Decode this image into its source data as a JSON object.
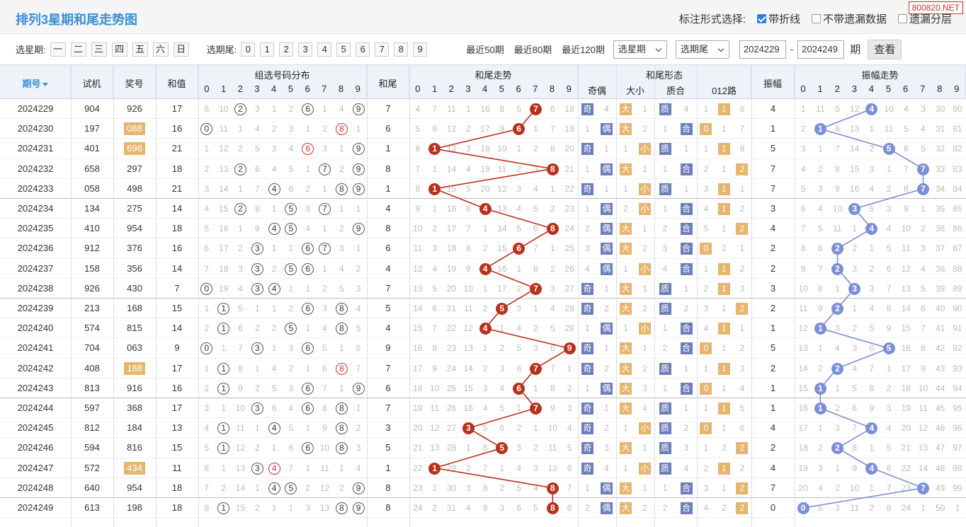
{
  "title": "排列3星期和尾走势图",
  "watermark": "800820.NET",
  "mark_options": {
    "label": "标注形式选择:",
    "opt1": "带折线",
    "opt2": "不带遗漏数据",
    "opt3": "遗漏分层",
    "opt1_checked": true
  },
  "filter": {
    "week_label": "选星期:",
    "weekdays": [
      "一",
      "二",
      "三",
      "四",
      "五",
      "六",
      "日"
    ],
    "tail_label": "选期尾:",
    "tails": [
      "0",
      "1",
      "2",
      "3",
      "4",
      "5",
      "6",
      "7",
      "8",
      "9"
    ],
    "recent": [
      "最近50期",
      "最近80期",
      "最近120期"
    ],
    "select_week": "选星期",
    "select_tail": "选期尾",
    "from": "2024229",
    "dash": "-",
    "to": "2024249",
    "period": "期",
    "view": "查看"
  },
  "headers": {
    "issue": "期号",
    "trial": "试机",
    "prize": "奖号",
    "sum": "和值",
    "dist": "组选号码分布",
    "tail": "和尾",
    "tail_trend": "和尾走势",
    "form": "和尾形态",
    "odd_even": "奇偶",
    "big_small": "大小",
    "prime": "质合",
    "road": "012路",
    "amp": "振幅",
    "amp_trend": "振幅走势",
    "digits": [
      "0",
      "1",
      "2",
      "3",
      "4",
      "5",
      "6",
      "7",
      "8",
      "9"
    ]
  },
  "rows": [
    {
      "issue": "2024229",
      "trial": "904",
      "prize": "926",
      "sum": "17",
      "prize_hl": false,
      "dist": [
        "8",
        "10",
        "2",
        "3",
        "1",
        "2",
        "6",
        "1",
        "4",
        "9"
      ],
      "tail": "7",
      "tt": [
        "4",
        "7",
        "11",
        "1",
        "16",
        "8",
        "5",
        "7",
        "6",
        "18"
      ],
      "oe": [
        "奇",
        "4"
      ],
      "bs": [
        "大",
        "1"
      ],
      "pc": [
        "质",
        "4"
      ],
      "road": [
        "1",
        "1",
        "6"
      ],
      "amp": "4",
      "at": [
        "1",
        "11",
        "5",
        "12",
        "4",
        "10",
        "4",
        "3",
        "30",
        "80"
      ]
    },
    {
      "issue": "2024230",
      "trial": "197",
      "prize": "088",
      "sum": "16",
      "prize_hl": true,
      "dist": [
        "0",
        "11",
        "1",
        "4",
        "2",
        "3",
        "1",
        "2",
        "8",
        "1"
      ],
      "tail": "6",
      "tt": [
        "5",
        "8",
        "12",
        "2",
        "17",
        "9",
        "6",
        "1",
        "7",
        "19"
      ],
      "oe": [
        "1",
        "偶"
      ],
      "bs": [
        "大",
        "2"
      ],
      "pc": [
        "1",
        "合"
      ],
      "road": [
        "0",
        "1",
        "7"
      ],
      "amp": "1",
      "at": [
        "2",
        "1",
        "6",
        "13",
        "1",
        "11",
        "5",
        "4",
        "31",
        "81"
      ]
    },
    {
      "issue": "2024231",
      "trial": "401",
      "prize": "696",
      "sum": "21",
      "prize_hl": true,
      "dist": [
        "1",
        "12",
        "2",
        "5",
        "3",
        "4",
        "6",
        "3",
        "1",
        "9"
      ],
      "tail": "1",
      "tt": [
        "6",
        "1",
        "13",
        "3",
        "18",
        "10",
        "1",
        "2",
        "8",
        "20"
      ],
      "oe": [
        "奇",
        "1"
      ],
      "bs": [
        "1",
        "小"
      ],
      "pc": [
        "质",
        "1"
      ],
      "road": [
        "1",
        "1",
        "8"
      ],
      "amp": "5",
      "at": [
        "3",
        "1",
        "7",
        "14",
        "2",
        "5",
        "6",
        "5",
        "32",
        "82"
      ]
    },
    {
      "issue": "2024232",
      "trial": "658",
      "prize": "297",
      "sum": "18",
      "prize_hl": false,
      "dist": [
        "2",
        "13",
        "2",
        "6",
        "4",
        "5",
        "1",
        "7",
        "2",
        "9"
      ],
      "tail": "8",
      "tt": [
        "7",
        "1",
        "14",
        "4",
        "19",
        "11",
        "2",
        "3",
        "8",
        "21"
      ],
      "oe": [
        "1",
        "偶"
      ],
      "bs": [
        "大",
        "1"
      ],
      "pc": [
        "1",
        "合"
      ],
      "road": [
        "2",
        "1",
        "2"
      ],
      "amp": "7",
      "at": [
        "4",
        "2",
        "8",
        "15",
        "3",
        "1",
        "7",
        "7",
        "33",
        "83"
      ]
    },
    {
      "issue": "2024233",
      "trial": "058",
      "prize": "498",
      "sum": "21",
      "prize_hl": false,
      "dist": [
        "3",
        "14",
        "1",
        "7",
        "4",
        "6",
        "2",
        "1",
        "8",
        "9"
      ],
      "tail": "1",
      "tt": [
        "8",
        "1",
        "15",
        "5",
        "20",
        "12",
        "3",
        "4",
        "1",
        "22"
      ],
      "oe": [
        "奇",
        "1"
      ],
      "bs": [
        "1",
        "小"
      ],
      "pc": [
        "质",
        "1"
      ],
      "road": [
        "3",
        "1",
        "1"
      ],
      "amp": "7",
      "at": [
        "5",
        "3",
        "9",
        "16",
        "4",
        "2",
        "8",
        "7",
        "34",
        "84"
      ]
    },
    {
      "issue": "2024234",
      "trial": "134",
      "prize": "275",
      "sum": "14",
      "prize_hl": false,
      "dist": [
        "4",
        "15",
        "2",
        "8",
        "1",
        "5",
        "3",
        "7",
        "1",
        "1"
      ],
      "tail": "4",
      "tt": [
        "9",
        "1",
        "16",
        "6",
        "4",
        "13",
        "4",
        "5",
        "2",
        "23"
      ],
      "oe": [
        "1",
        "偶"
      ],
      "bs": [
        "2",
        "小"
      ],
      "pc": [
        "1",
        "合"
      ],
      "road": [
        "4",
        "1",
        "2"
      ],
      "amp": "3",
      "at": [
        "6",
        "4",
        "10",
        "3",
        "5",
        "3",
        "9",
        "1",
        "35",
        "85"
      ]
    },
    {
      "issue": "2024235",
      "trial": "410",
      "prize": "954",
      "sum": "18",
      "prize_hl": false,
      "dist": [
        "5",
        "16",
        "1",
        "9",
        "4",
        "5",
        "4",
        "1",
        "2",
        "9"
      ],
      "tail": "8",
      "tt": [
        "10",
        "2",
        "17",
        "7",
        "1",
        "14",
        "5",
        "6",
        "8",
        "24"
      ],
      "oe": [
        "2",
        "偶"
      ],
      "bs": [
        "大",
        "1"
      ],
      "pc": [
        "2",
        "合"
      ],
      "road": [
        "5",
        "1",
        "2"
      ],
      "amp": "4",
      "at": [
        "7",
        "5",
        "11",
        "1",
        "4",
        "4",
        "10",
        "2",
        "36",
        "86"
      ]
    },
    {
      "issue": "2024236",
      "trial": "912",
      "prize": "376",
      "sum": "16",
      "prize_hl": false,
      "dist": [
        "6",
        "17",
        "2",
        "3",
        "1",
        "1",
        "6",
        "7",
        "3",
        "1"
      ],
      "tail": "6",
      "tt": [
        "11",
        "3",
        "18",
        "8",
        "2",
        "15",
        "6",
        "7",
        "1",
        "25"
      ],
      "oe": [
        "3",
        "偶"
      ],
      "bs": [
        "大",
        "2"
      ],
      "pc": [
        "3",
        "合"
      ],
      "road": [
        "0",
        "2",
        "1"
      ],
      "amp": "2",
      "at": [
        "8",
        "6",
        "2",
        "2",
        "1",
        "5",
        "11",
        "3",
        "37",
        "87"
      ]
    },
    {
      "issue": "2024237",
      "trial": "158",
      "prize": "356",
      "sum": "14",
      "prize_hl": false,
      "dist": [
        "7",
        "18",
        "3",
        "3",
        "2",
        "5",
        "6",
        "1",
        "4",
        "2"
      ],
      "tail": "4",
      "tt": [
        "12",
        "4",
        "19",
        "9",
        "4",
        "16",
        "1",
        "8",
        "2",
        "26"
      ],
      "oe": [
        "4",
        "偶"
      ],
      "bs": [
        "1",
        "小"
      ],
      "pc": [
        "4",
        "合"
      ],
      "road": [
        "1",
        "1",
        "2"
      ],
      "amp": "2",
      "at": [
        "9",
        "7",
        "2",
        "3",
        "2",
        "6",
        "12",
        "4",
        "38",
        "88"
      ]
    },
    {
      "issue": "2024238",
      "trial": "926",
      "prize": "430",
      "sum": "7",
      "prize_hl": false,
      "dist": [
        "0",
        "19",
        "4",
        "3",
        "4",
        "1",
        "1",
        "2",
        "5",
        "3"
      ],
      "tail": "7",
      "tt": [
        "13",
        "5",
        "20",
        "10",
        "1",
        "17",
        "2",
        "7",
        "3",
        "27"
      ],
      "oe": [
        "奇",
        "1"
      ],
      "bs": [
        "大",
        "1"
      ],
      "pc": [
        "质",
        "1"
      ],
      "road": [
        "2",
        "1",
        "3"
      ],
      "amp": "3",
      "at": [
        "10",
        "8",
        "1",
        "3",
        "3",
        "7",
        "13",
        "5",
        "39",
        "89"
      ]
    },
    {
      "issue": "2024239",
      "trial": "213",
      "prize": "168",
      "sum": "15",
      "prize_hl": false,
      "dist": [
        "1",
        "1",
        "5",
        "1",
        "1",
        "2",
        "6",
        "3",
        "8",
        "4"
      ],
      "tail": "5",
      "tt": [
        "14",
        "6",
        "21",
        "11",
        "2",
        "5",
        "3",
        "1",
        "4",
        "28"
      ],
      "oe": [
        "奇",
        "2"
      ],
      "bs": [
        "大",
        "2"
      ],
      "pc": [
        "质",
        "2"
      ],
      "road": [
        "3",
        "1",
        "2"
      ],
      "amp": "2",
      "at": [
        "11",
        "9",
        "2",
        "1",
        "4",
        "8",
        "14",
        "6",
        "40",
        "90"
      ]
    },
    {
      "issue": "2024240",
      "trial": "574",
      "prize": "815",
      "sum": "14",
      "prize_hl": false,
      "dist": [
        "2",
        "1",
        "6",
        "2",
        "2",
        "5",
        "1",
        "4",
        "8",
        "5"
      ],
      "tail": "4",
      "tt": [
        "15",
        "7",
        "22",
        "12",
        "4",
        "1",
        "4",
        "2",
        "5",
        "29"
      ],
      "oe": [
        "1",
        "偶"
      ],
      "bs": [
        "1",
        "小"
      ],
      "pc": [
        "1",
        "合"
      ],
      "road": [
        "4",
        "1",
        "1"
      ],
      "amp": "1",
      "at": [
        "12",
        "1",
        "3",
        "2",
        "5",
        "9",
        "15",
        "7",
        "41",
        "91"
      ]
    },
    {
      "issue": "2024241",
      "trial": "704",
      "prize": "063",
      "sum": "9",
      "prize_hl": false,
      "dist": [
        "0",
        "1",
        "7",
        "3",
        "1",
        "3",
        "6",
        "5",
        "1",
        "6"
      ],
      "tail": "9",
      "tt": [
        "16",
        "8",
        "23",
        "13",
        "1",
        "2",
        "5",
        "3",
        "6",
        "9"
      ],
      "oe": [
        "奇",
        "1"
      ],
      "bs": [
        "大",
        "1"
      ],
      "pc": [
        "2",
        "合"
      ],
      "road": [
        "0",
        "1",
        "2"
      ],
      "amp": "5",
      "at": [
        "13",
        "1",
        "4",
        "3",
        "6",
        "5",
        "16",
        "8",
        "42",
        "92"
      ]
    },
    {
      "issue": "2024242",
      "trial": "408",
      "prize": "188",
      "sum": "17",
      "prize_hl": true,
      "dist": [
        "1",
        "1",
        "8",
        "1",
        "4",
        "2",
        "1",
        "6",
        "8",
        "7"
      ],
      "tail": "7",
      "tt": [
        "17",
        "9",
        "24",
        "14",
        "2",
        "3",
        "6",
        "7",
        "7",
        "1"
      ],
      "oe": [
        "奇",
        "2"
      ],
      "bs": [
        "大",
        "2"
      ],
      "pc": [
        "质",
        "1"
      ],
      "road": [
        "1",
        "1",
        "3"
      ],
      "amp": "2",
      "at": [
        "14",
        "2",
        "2",
        "4",
        "7",
        "1",
        "17",
        "9",
        "43",
        "93"
      ]
    },
    {
      "issue": "2024243",
      "trial": "813",
      "prize": "916",
      "sum": "16",
      "prize_hl": false,
      "dist": [
        "2",
        "1",
        "9",
        "2",
        "5",
        "3",
        "6",
        "7",
        "1",
        "9"
      ],
      "tail": "6",
      "tt": [
        "18",
        "10",
        "25",
        "15",
        "3",
        "4",
        "6",
        "1",
        "8",
        "2"
      ],
      "oe": [
        "1",
        "偶"
      ],
      "bs": [
        "大",
        "3"
      ],
      "pc": [
        "1",
        "合"
      ],
      "road": [
        "0",
        "1",
        "4"
      ],
      "amp": "1",
      "at": [
        "15",
        "1",
        "1",
        "5",
        "8",
        "2",
        "18",
        "10",
        "44",
        "94"
      ]
    },
    {
      "issue": "2024244",
      "trial": "597",
      "prize": "368",
      "sum": "17",
      "prize_hl": false,
      "dist": [
        "3",
        "1",
        "10",
        "3",
        "6",
        "4",
        "6",
        "8",
        "8",
        "1"
      ],
      "tail": "7",
      "tt": [
        "19",
        "11",
        "26",
        "16",
        "4",
        "5",
        "1",
        "7",
        "9",
        "3"
      ],
      "oe": [
        "奇",
        "1"
      ],
      "bs": [
        "大",
        "4"
      ],
      "pc": [
        "质",
        "1"
      ],
      "road": [
        "1",
        "1",
        "5"
      ],
      "amp": "1",
      "at": [
        "16",
        "1",
        "2",
        "6",
        "9",
        "3",
        "19",
        "11",
        "45",
        "95"
      ]
    },
    {
      "issue": "2024245",
      "trial": "812",
      "prize": "184",
      "sum": "13",
      "prize_hl": false,
      "dist": [
        "4",
        "1",
        "11",
        "1",
        "4",
        "5",
        "1",
        "9",
        "8",
        "2"
      ],
      "tail": "3",
      "tt": [
        "20",
        "12",
        "27",
        "3",
        "5",
        "6",
        "2",
        "1",
        "10",
        "4"
      ],
      "oe": [
        "奇",
        "2"
      ],
      "bs": [
        "1",
        "小"
      ],
      "pc": [
        "质",
        "2"
      ],
      "road": [
        "0",
        "1",
        "6"
      ],
      "amp": "4",
      "at": [
        "17",
        "1",
        "3",
        "7",
        "4",
        "4",
        "20",
        "12",
        "46",
        "96"
      ]
    },
    {
      "issue": "2024246",
      "trial": "594",
      "prize": "816",
      "sum": "15",
      "prize_hl": false,
      "dist": [
        "5",
        "1",
        "12",
        "2",
        "1",
        "6",
        "6",
        "10",
        "8",
        "3"
      ],
      "tail": "5",
      "tt": [
        "21",
        "13",
        "28",
        "1",
        "6",
        "5",
        "3",
        "2",
        "11",
        "5"
      ],
      "oe": [
        "奇",
        "3"
      ],
      "bs": [
        "大",
        "1"
      ],
      "pc": [
        "质",
        "3"
      ],
      "road": [
        "1",
        "2",
        "2"
      ],
      "amp": "2",
      "at": [
        "18",
        "2",
        "2",
        "8",
        "1",
        "5",
        "21",
        "13",
        "47",
        "97"
      ]
    },
    {
      "issue": "2024247",
      "trial": "572",
      "prize": "434",
      "sum": "11",
      "prize_hl": true,
      "dist": [
        "6",
        "1",
        "13",
        "3",
        "4",
        "7",
        "1",
        "11",
        "1",
        "4"
      ],
      "tail": "1",
      "tt": [
        "22",
        "1",
        "29",
        "2",
        "7",
        "1",
        "4",
        "3",
        "12",
        "6"
      ],
      "oe": [
        "奇",
        "4"
      ],
      "bs": [
        "1",
        "小"
      ],
      "pc": [
        "质",
        "4"
      ],
      "road": [
        "2",
        "1",
        "2"
      ],
      "amp": "4",
      "at": [
        "19",
        "3",
        "1",
        "9",
        "4",
        "6",
        "22",
        "14",
        "48",
        "98"
      ]
    },
    {
      "issue": "2024248",
      "trial": "640",
      "prize": "954",
      "sum": "18",
      "prize_hl": false,
      "dist": [
        "7",
        "2",
        "14",
        "1",
        "4",
        "5",
        "2",
        "12",
        "2",
        "9"
      ],
      "tail": "8",
      "tt": [
        "23",
        "1",
        "30",
        "3",
        "8",
        "2",
        "5",
        "4",
        "8",
        "7"
      ],
      "oe": [
        "1",
        "偶"
      ],
      "bs": [
        "大",
        "1"
      ],
      "pc": [
        "1",
        "合"
      ],
      "road": [
        "3",
        "1",
        "2"
      ],
      "amp": "7",
      "at": [
        "20",
        "4",
        "2",
        "10",
        "1",
        "7",
        "23",
        "7",
        "49",
        "99"
      ]
    },
    {
      "issue": "2024249",
      "trial": "613",
      "prize": "198",
      "sum": "18",
      "prize_hl": false,
      "dist": [
        "8",
        "1",
        "15",
        "2",
        "1",
        "1",
        "3",
        "13",
        "8",
        "9"
      ],
      "tail": "8",
      "tt": [
        "24",
        "2",
        "31",
        "4",
        "9",
        "3",
        "6",
        "5",
        "8",
        "8"
      ],
      "oe": [
        "2",
        "偶"
      ],
      "bs": [
        "大",
        "2"
      ],
      "pc": [
        "2",
        "合"
      ],
      "road": [
        "4",
        "2",
        "2"
      ],
      "amp": "0",
      "at": [
        "0",
        "5",
        "3",
        "11",
        "2",
        "8",
        "24",
        "1",
        "50",
        "1"
      ]
    }
  ],
  "dist_hits": [
    [
      2,
      6,
      9
    ],
    [
      0,
      8,
      8
    ],
    [
      6,
      6,
      9
    ],
    [
      2,
      7,
      9
    ],
    [
      4,
      8,
      9
    ],
    [
      2,
      5,
      7
    ],
    [
      4,
      5,
      9
    ],
    [
      3,
      6,
      7
    ],
    [
      3,
      5,
      6
    ],
    [
      0,
      3,
      4
    ],
    [
      1,
      6,
      8
    ],
    [
      1,
      5,
      8
    ],
    [
      0,
      3,
      6
    ],
    [
      1,
      8,
      8
    ],
    [
      1,
      6,
      9
    ],
    [
      3,
      6,
      8
    ],
    [
      1,
      4,
      8
    ],
    [
      1,
      6,
      8
    ],
    [
      3,
      4,
      4
    ],
    [
      4,
      5,
      9
    ],
    [
      1,
      8,
      9
    ]
  ],
  "dist_red": [
    [],
    [
      8
    ],
    [
      6
    ],
    [],
    [],
    [],
    [],
    [],
    [],
    [],
    [],
    [],
    [],
    [
      8
    ],
    [],
    [],
    [],
    [],
    [
      4
    ],
    [],
    []
  ],
  "colors": {
    "trend": "#b8311c",
    "amp": "#7b8fd6",
    "accent": "#3a8ed6",
    "tag_blue": "#6c7fba",
    "tag_orange": "#e6b56e"
  }
}
